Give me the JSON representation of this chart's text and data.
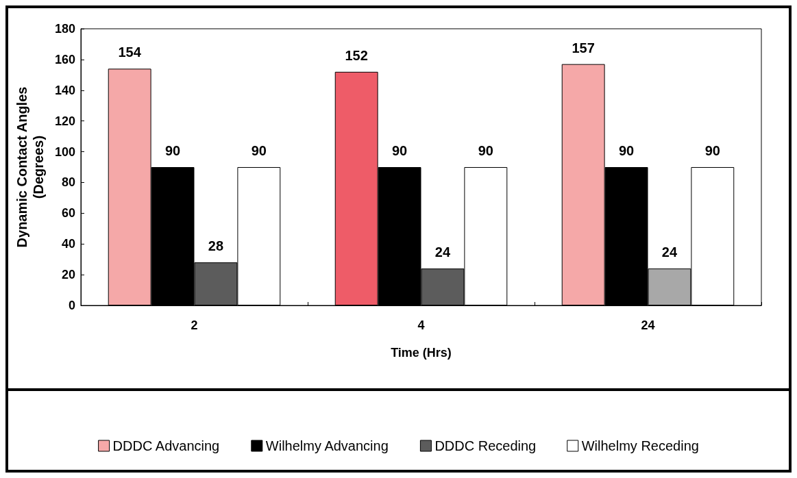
{
  "chart_data": {
    "type": "bar",
    "xlabel": "Time (Hrs)",
    "ylabel": "Dynamic Contact Angles\n(Degrees)",
    "categories": [
      "2",
      "4",
      "24"
    ],
    "series": [
      {
        "name": "DDDC Advancing",
        "color": "#f5a8a8",
        "colors": [
          "#f5a8a8",
          "#ee5c68",
          "#f5a8a8"
        ],
        "values": [
          154,
          152,
          157
        ]
      },
      {
        "name": "Wilhelmy Advancing",
        "color": "#000000",
        "values": [
          90,
          90,
          90
        ]
      },
      {
        "name": "DDDC Receding",
        "color": "#5c5c5c",
        "colors": [
          "#5c5c5c",
          "#5c5c5c",
          "#a8a8a8"
        ],
        "values": [
          28,
          24,
          24
        ]
      },
      {
        "name": "Wilhelmy Receding",
        "color": "#ffffff",
        "values": [
          90,
          90,
          90
        ]
      }
    ],
    "ylim": [
      0,
      180
    ],
    "yticks": [
      0,
      20,
      40,
      60,
      80,
      100,
      120,
      140,
      160,
      180
    ],
    "grid": false,
    "legend": "bottom",
    "data_labels": true
  }
}
